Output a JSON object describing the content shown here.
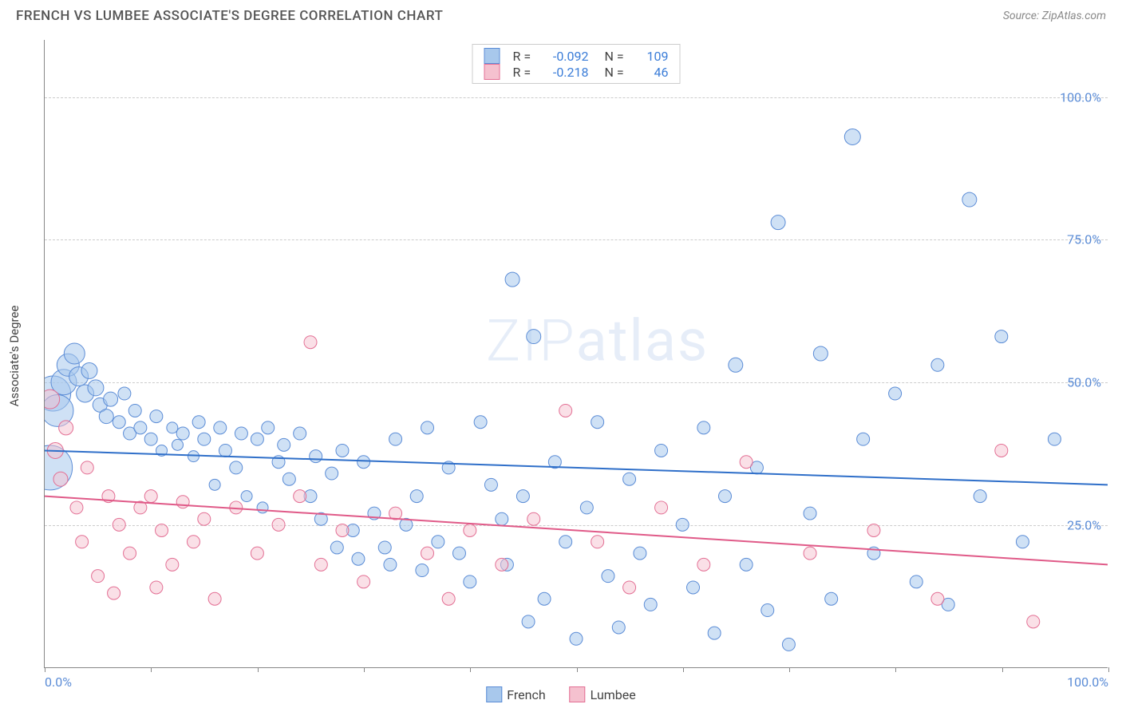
{
  "title": "FRENCH VS LUMBEE ASSOCIATE'S DEGREE CORRELATION CHART",
  "source": "Source: ZipAtlas.com",
  "ylabel": "Associate's Degree",
  "watermark": "ZIPatlas",
  "chart": {
    "type": "scatter",
    "xlim": [
      0,
      100
    ],
    "ylim": [
      0,
      110
    ],
    "yticks": [
      25,
      50,
      75,
      100
    ],
    "ytick_labels": [
      "25.0%",
      "50.0%",
      "75.0%",
      "100.0%"
    ],
    "xticks": [
      0,
      10,
      20,
      30,
      40,
      50,
      60,
      70,
      80,
      90,
      100
    ],
    "xtick_labels_shown": {
      "0": "0.0%",
      "100": "100.0%"
    },
    "background_color": "#ffffff",
    "grid_color": "#cccccc",
    "axis_color": "#888888",
    "series": [
      {
        "name": "French",
        "color_fill": "#a8c8ec",
        "color_stroke": "#5b8cd6",
        "fill_opacity": 0.55,
        "r_value": "-0.092",
        "n_value": "109",
        "trend": {
          "y_at_x0": 38,
          "y_at_x100": 32,
          "stroke": "#2f6fc9",
          "width": 2
        },
        "points": [
          {
            "x": 0.5,
            "y": 35,
            "r": 28
          },
          {
            "x": 0.8,
            "y": 48,
            "r": 22
          },
          {
            "x": 1.2,
            "y": 45,
            "r": 20
          },
          {
            "x": 1.8,
            "y": 50,
            "r": 16
          },
          {
            "x": 2.2,
            "y": 53,
            "r": 14
          },
          {
            "x": 2.8,
            "y": 55,
            "r": 13
          },
          {
            "x": 3.2,
            "y": 51,
            "r": 12
          },
          {
            "x": 3.8,
            "y": 48,
            "r": 11
          },
          {
            "x": 4.2,
            "y": 52,
            "r": 10
          },
          {
            "x": 4.8,
            "y": 49,
            "r": 10
          },
          {
            "x": 5.2,
            "y": 46,
            "r": 9
          },
          {
            "x": 5.8,
            "y": 44,
            "r": 9
          },
          {
            "x": 6.2,
            "y": 47,
            "r": 9
          },
          {
            "x": 7,
            "y": 43,
            "r": 8
          },
          {
            "x": 7.5,
            "y": 48,
            "r": 8
          },
          {
            "x": 8,
            "y": 41,
            "r": 8
          },
          {
            "x": 8.5,
            "y": 45,
            "r": 8
          },
          {
            "x": 9,
            "y": 42,
            "r": 8
          },
          {
            "x": 10,
            "y": 40,
            "r": 8
          },
          {
            "x": 10.5,
            "y": 44,
            "r": 8
          },
          {
            "x": 11,
            "y": 38,
            "r": 7
          },
          {
            "x": 12,
            "y": 42,
            "r": 7
          },
          {
            "x": 12.5,
            "y": 39,
            "r": 7
          },
          {
            "x": 13,
            "y": 41,
            "r": 8
          },
          {
            "x": 14,
            "y": 37,
            "r": 7
          },
          {
            "x": 14.5,
            "y": 43,
            "r": 8
          },
          {
            "x": 15,
            "y": 40,
            "r": 8
          },
          {
            "x": 16,
            "y": 32,
            "r": 7
          },
          {
            "x": 16.5,
            "y": 42,
            "r": 8
          },
          {
            "x": 17,
            "y": 38,
            "r": 8
          },
          {
            "x": 18,
            "y": 35,
            "r": 8
          },
          {
            "x": 18.5,
            "y": 41,
            "r": 8
          },
          {
            "x": 19,
            "y": 30,
            "r": 7
          },
          {
            "x": 20,
            "y": 40,
            "r": 8
          },
          {
            "x": 20.5,
            "y": 28,
            "r": 7
          },
          {
            "x": 21,
            "y": 42,
            "r": 8
          },
          {
            "x": 22,
            "y": 36,
            "r": 8
          },
          {
            "x": 22.5,
            "y": 39,
            "r": 8
          },
          {
            "x": 23,
            "y": 33,
            "r": 8
          },
          {
            "x": 24,
            "y": 41,
            "r": 8
          },
          {
            "x": 25,
            "y": 30,
            "r": 8
          },
          {
            "x": 25.5,
            "y": 37,
            "r": 8
          },
          {
            "x": 26,
            "y": 26,
            "r": 8
          },
          {
            "x": 27,
            "y": 34,
            "r": 8
          },
          {
            "x": 27.5,
            "y": 21,
            "r": 8
          },
          {
            "x": 28,
            "y": 38,
            "r": 8
          },
          {
            "x": 29,
            "y": 24,
            "r": 8
          },
          {
            "x": 29.5,
            "y": 19,
            "r": 8
          },
          {
            "x": 30,
            "y": 36,
            "r": 8
          },
          {
            "x": 31,
            "y": 27,
            "r": 8
          },
          {
            "x": 32,
            "y": 21,
            "r": 8
          },
          {
            "x": 32.5,
            "y": 18,
            "r": 8
          },
          {
            "x": 33,
            "y": 40,
            "r": 8
          },
          {
            "x": 34,
            "y": 25,
            "r": 8
          },
          {
            "x": 35,
            "y": 30,
            "r": 8
          },
          {
            "x": 35.5,
            "y": 17,
            "r": 8
          },
          {
            "x": 36,
            "y": 42,
            "r": 8
          },
          {
            "x": 37,
            "y": 22,
            "r": 8
          },
          {
            "x": 38,
            "y": 35,
            "r": 8
          },
          {
            "x": 39,
            "y": 20,
            "r": 8
          },
          {
            "x": 40,
            "y": 15,
            "r": 8
          },
          {
            "x": 41,
            "y": 43,
            "r": 8
          },
          {
            "x": 42,
            "y": 32,
            "r": 8
          },
          {
            "x": 43,
            "y": 26,
            "r": 8
          },
          {
            "x": 43.5,
            "y": 18,
            "r": 8
          },
          {
            "x": 44,
            "y": 68,
            "r": 9
          },
          {
            "x": 45,
            "y": 30,
            "r": 8
          },
          {
            "x": 45.5,
            "y": 8,
            "r": 8
          },
          {
            "x": 46,
            "y": 58,
            "r": 9
          },
          {
            "x": 47,
            "y": 12,
            "r": 8
          },
          {
            "x": 48,
            "y": 36,
            "r": 8
          },
          {
            "x": 49,
            "y": 22,
            "r": 8
          },
          {
            "x": 50,
            "y": 5,
            "r": 8
          },
          {
            "x": 51,
            "y": 28,
            "r": 8
          },
          {
            "x": 52,
            "y": 43,
            "r": 8
          },
          {
            "x": 53,
            "y": 16,
            "r": 8
          },
          {
            "x": 54,
            "y": 7,
            "r": 8
          },
          {
            "x": 55,
            "y": 33,
            "r": 8
          },
          {
            "x": 56,
            "y": 20,
            "r": 8
          },
          {
            "x": 57,
            "y": 11,
            "r": 8
          },
          {
            "x": 58,
            "y": 38,
            "r": 8
          },
          {
            "x": 60,
            "y": 25,
            "r": 8
          },
          {
            "x": 61,
            "y": 14,
            "r": 8
          },
          {
            "x": 62,
            "y": 42,
            "r": 8
          },
          {
            "x": 63,
            "y": 6,
            "r": 8
          },
          {
            "x": 64,
            "y": 30,
            "r": 8
          },
          {
            "x": 65,
            "y": 53,
            "r": 9
          },
          {
            "x": 66,
            "y": 18,
            "r": 8
          },
          {
            "x": 67,
            "y": 35,
            "r": 8
          },
          {
            "x": 68,
            "y": 10,
            "r": 8
          },
          {
            "x": 69,
            "y": 78,
            "r": 9
          },
          {
            "x": 70,
            "y": 4,
            "r": 8
          },
          {
            "x": 72,
            "y": 27,
            "r": 8
          },
          {
            "x": 73,
            "y": 55,
            "r": 9
          },
          {
            "x": 74,
            "y": 12,
            "r": 8
          },
          {
            "x": 76,
            "y": 93,
            "r": 10
          },
          {
            "x": 77,
            "y": 40,
            "r": 8
          },
          {
            "x": 78,
            "y": 20,
            "r": 8
          },
          {
            "x": 80,
            "y": 48,
            "r": 8
          },
          {
            "x": 82,
            "y": 15,
            "r": 8
          },
          {
            "x": 84,
            "y": 53,
            "r": 8
          },
          {
            "x": 85,
            "y": 11,
            "r": 8
          },
          {
            "x": 87,
            "y": 82,
            "r": 9
          },
          {
            "x": 88,
            "y": 30,
            "r": 8
          },
          {
            "x": 90,
            "y": 58,
            "r": 8
          },
          {
            "x": 92,
            "y": 22,
            "r": 8
          },
          {
            "x": 95,
            "y": 40,
            "r": 8
          }
        ]
      },
      {
        "name": "Lumbee",
        "color_fill": "#f5c1cf",
        "color_stroke": "#e36f94",
        "fill_opacity": 0.5,
        "r_value": "-0.218",
        "n_value": "46",
        "trend": {
          "y_at_x0": 30,
          "y_at_x100": 18,
          "stroke": "#e05a88",
          "width": 2
        },
        "points": [
          {
            "x": 0.5,
            "y": 47,
            "r": 12
          },
          {
            "x": 1,
            "y": 38,
            "r": 10
          },
          {
            "x": 1.5,
            "y": 33,
            "r": 9
          },
          {
            "x": 2,
            "y": 42,
            "r": 9
          },
          {
            "x": 3,
            "y": 28,
            "r": 8
          },
          {
            "x": 3.5,
            "y": 22,
            "r": 8
          },
          {
            "x": 4,
            "y": 35,
            "r": 8
          },
          {
            "x": 5,
            "y": 16,
            "r": 8
          },
          {
            "x": 6,
            "y": 30,
            "r": 8
          },
          {
            "x": 6.5,
            "y": 13,
            "r": 8
          },
          {
            "x": 7,
            "y": 25,
            "r": 8
          },
          {
            "x": 8,
            "y": 20,
            "r": 8
          },
          {
            "x": 9,
            "y": 28,
            "r": 8
          },
          {
            "x": 10,
            "y": 30,
            "r": 8
          },
          {
            "x": 10.5,
            "y": 14,
            "r": 8
          },
          {
            "x": 11,
            "y": 24,
            "r": 8
          },
          {
            "x": 12,
            "y": 18,
            "r": 8
          },
          {
            "x": 13,
            "y": 29,
            "r": 8
          },
          {
            "x": 14,
            "y": 22,
            "r": 8
          },
          {
            "x": 15,
            "y": 26,
            "r": 8
          },
          {
            "x": 16,
            "y": 12,
            "r": 8
          },
          {
            "x": 18,
            "y": 28,
            "r": 8
          },
          {
            "x": 20,
            "y": 20,
            "r": 8
          },
          {
            "x": 22,
            "y": 25,
            "r": 8
          },
          {
            "x": 24,
            "y": 30,
            "r": 8
          },
          {
            "x": 25,
            "y": 57,
            "r": 8
          },
          {
            "x": 26,
            "y": 18,
            "r": 8
          },
          {
            "x": 28,
            "y": 24,
            "r": 8
          },
          {
            "x": 30,
            "y": 15,
            "r": 8
          },
          {
            "x": 33,
            "y": 27,
            "r": 8
          },
          {
            "x": 36,
            "y": 20,
            "r": 8
          },
          {
            "x": 38,
            "y": 12,
            "r": 8
          },
          {
            "x": 40,
            "y": 24,
            "r": 8
          },
          {
            "x": 43,
            "y": 18,
            "r": 8
          },
          {
            "x": 46,
            "y": 26,
            "r": 8
          },
          {
            "x": 49,
            "y": 45,
            "r": 8
          },
          {
            "x": 52,
            "y": 22,
            "r": 8
          },
          {
            "x": 55,
            "y": 14,
            "r": 8
          },
          {
            "x": 58,
            "y": 28,
            "r": 8
          },
          {
            "x": 62,
            "y": 18,
            "r": 8
          },
          {
            "x": 66,
            "y": 36,
            "r": 8
          },
          {
            "x": 72,
            "y": 20,
            "r": 8
          },
          {
            "x": 78,
            "y": 24,
            "r": 8
          },
          {
            "x": 84,
            "y": 12,
            "r": 8
          },
          {
            "x": 90,
            "y": 38,
            "r": 8
          },
          {
            "x": 93,
            "y": 8,
            "r": 8
          }
        ]
      }
    ]
  },
  "legend_bottom": [
    {
      "label": "French",
      "fill": "#a8c8ec",
      "stroke": "#5b8cd6"
    },
    {
      "label": "Lumbee",
      "fill": "#f5c1cf",
      "stroke": "#e36f94"
    }
  ]
}
